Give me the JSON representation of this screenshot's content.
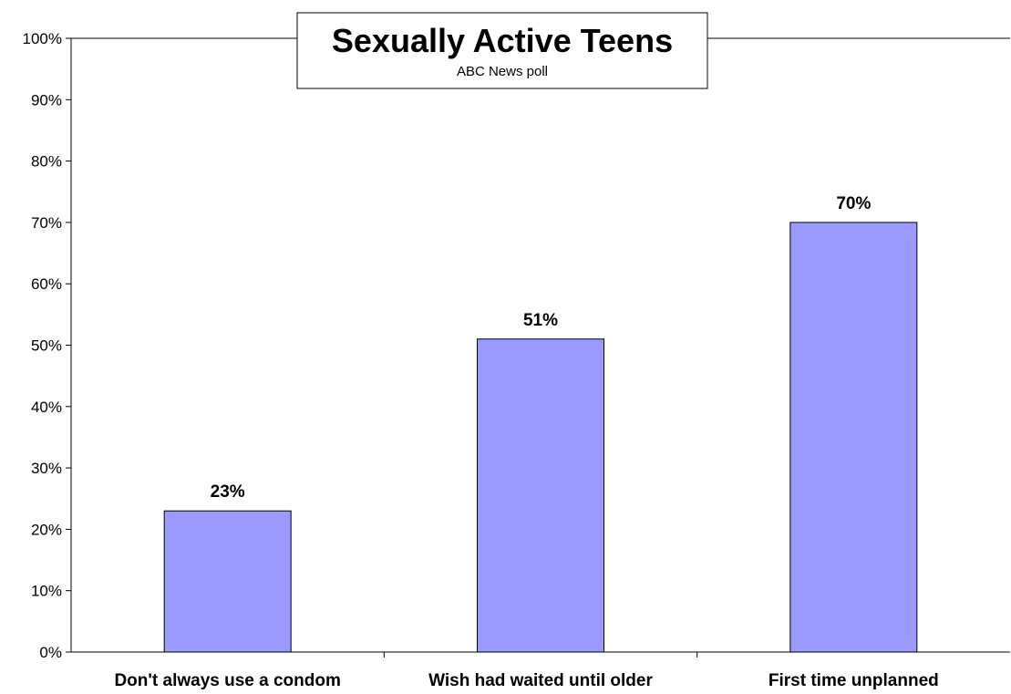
{
  "chart_data": {
    "type": "bar",
    "title": "Sexually Active Teens",
    "subtitle": "ABC News poll",
    "categories": [
      "Don't always use a condom",
      "Wish had waited until older",
      "First time unplanned"
    ],
    "values": [
      23,
      51,
      70
    ],
    "data_labels": [
      "23%",
      "51%",
      "70%"
    ],
    "ylim": [
      0,
      100
    ],
    "y_ticks": [
      0,
      10,
      20,
      30,
      40,
      50,
      60,
      70,
      80,
      90,
      100
    ],
    "y_tick_labels": [
      "0%",
      "10%",
      "20%",
      "30%",
      "40%",
      "50%",
      "60%",
      "70%",
      "80%",
      "90%",
      "100%"
    ],
    "xlabel": "",
    "ylabel": "",
    "grid": false,
    "legend": "none",
    "bar_color": "#9999ff",
    "bar_outline_color": "#000000"
  }
}
